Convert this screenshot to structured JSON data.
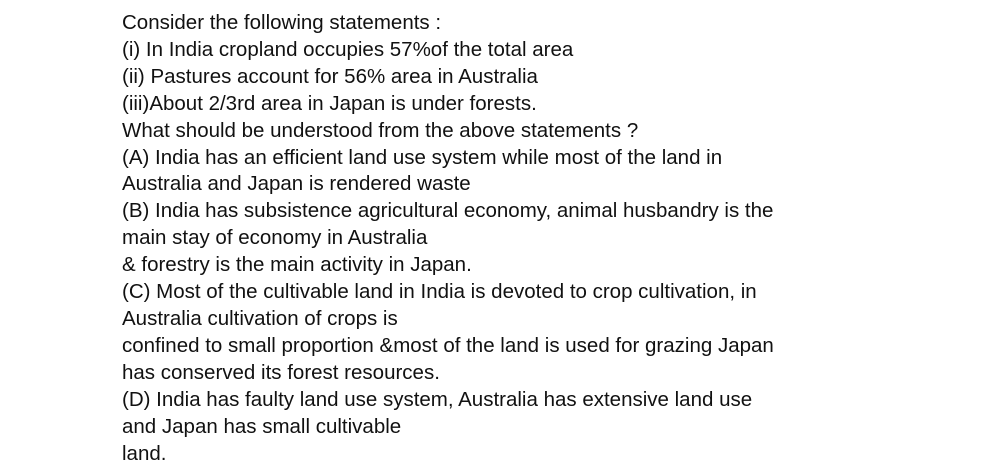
{
  "question": {
    "lines": [
      "Consider the following statements :",
      "(i) In India cropland occupies 57%of the total area",
      "(ii) Pastures account for 56% area in Australia",
      "(iii)About 2/3rd area in Japan is under forests.",
      "What should be understood from the above statements ?",
      "(A) India has an efficient land use system while most of the land in",
      "Australia and Japan is rendered waste",
      "(B) India has subsistence agricultural economy, animal husbandry is the",
      "main stay of economy in Australia",
      "& forestry is the main activity in Japan.",
      "(C) Most of the cultivable land in India is devoted to crop cultivation, in",
      "Australia cultivation of crops is",
      "confined to small proportion &most of the land is used for grazing Japan",
      "has conserved its forest resources.",
      "(D) India has faulty land use system, Australia has extensive land use",
      "and Japan has small cultivable",
      "land."
    ]
  }
}
